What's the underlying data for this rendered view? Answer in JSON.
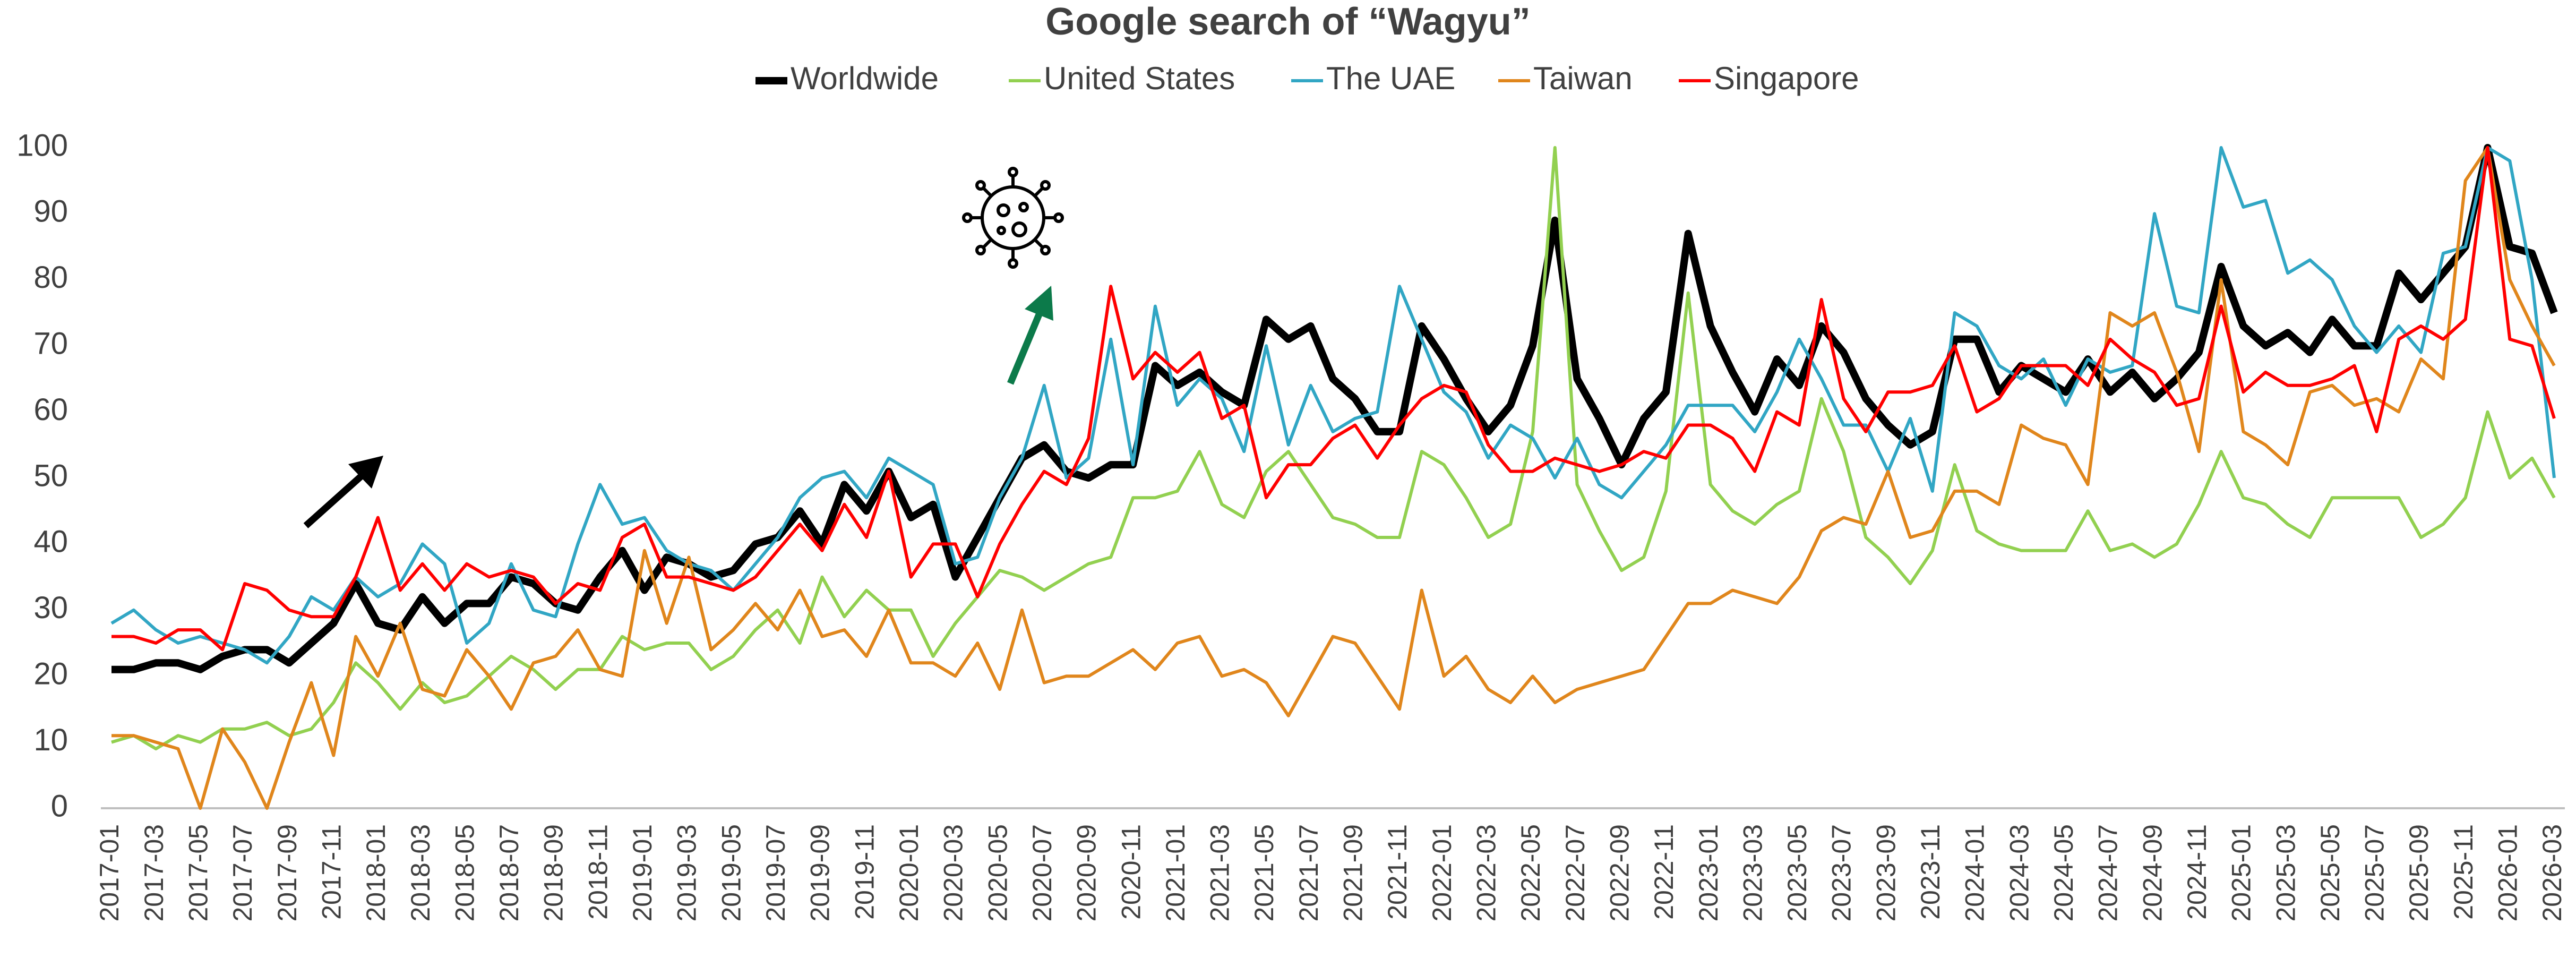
{
  "chart_data": {
    "type": "line",
    "title": "Google search of “Wagyu”",
    "categories": [
      "2017-01",
      null,
      "2017-03",
      null,
      "2017-05",
      null,
      "2017-07",
      null,
      "2017-09",
      null,
      "2017-11",
      null,
      "2018-01",
      null,
      "2018-03",
      null,
      "2018-05",
      null,
      "2018-07",
      null,
      "2018-09",
      null,
      "2018-11",
      null,
      "2019-01",
      null,
      "2019-03",
      null,
      "2019-05",
      null,
      "2019-07",
      null,
      "2019-09",
      null,
      "2019-11",
      null,
      "2020-01",
      null,
      "2020-03",
      null,
      "2020-05",
      null,
      "2020-07",
      null,
      "2020-09",
      null,
      "2020-11",
      null,
      "2021-01",
      null,
      "2021-03",
      null,
      "2021-05",
      null,
      "2021-07",
      null,
      "2021-09",
      null,
      "2021-11",
      null,
      "2022-01",
      null,
      "2022-03",
      null,
      "2022-05",
      null,
      "2022-07",
      null,
      "2022-09",
      null,
      "2022-11",
      null,
      "2023-01",
      null,
      "2023-03",
      null,
      "2023-05",
      null,
      "2023-07",
      null,
      "2023-09",
      null,
      "2023-11",
      null,
      "2024-01",
      null,
      "2024-03",
      null,
      "2024-05",
      null,
      "2024-07",
      null,
      "2024-09",
      null,
      "2024-11",
      null,
      "2025-01",
      null,
      "2025-03",
      null,
      "2025-05",
      null,
      "2025-07",
      null,
      "2025-09",
      null,
      "2025-11",
      null,
      "2026-01",
      null,
      "2026-03"
    ],
    "series": [
      {
        "name": "Worldwide",
        "color": "#000000",
        "values": [
          21,
          21,
          22,
          22,
          21,
          23,
          24,
          24,
          22,
          25,
          28,
          34,
          28,
          27,
          32,
          28,
          31,
          31,
          35,
          34,
          31,
          30,
          35,
          39,
          33,
          38,
          37,
          35,
          36,
          40,
          41,
          45,
          40,
          49,
          45,
          51,
          44,
          46,
          35,
          41,
          47,
          53,
          55,
          51,
          50,
          52,
          52,
          67,
          64,
          66,
          63,
          61,
          74,
          71,
          73,
          65,
          62,
          57,
          57,
          73,
          68,
          62,
          57,
          61,
          70,
          89,
          65,
          59,
          52,
          59,
          63,
          87,
          73,
          66,
          60,
          68,
          64,
          73,
          69,
          62,
          58,
          55,
          57,
          71,
          71,
          63,
          67,
          65,
          63,
          68,
          63,
          66,
          62,
          65,
          69,
          82,
          73,
          70,
          72,
          69,
          74,
          70,
          70,
          81,
          77,
          81,
          85,
          100,
          85,
          84,
          75
        ]
      },
      {
        "name": "United States",
        "color": "#92d050",
        "values": [
          10,
          11,
          9,
          11,
          10,
          12,
          12,
          13,
          11,
          12,
          16,
          22,
          19,
          15,
          19,
          16,
          17,
          20,
          23,
          21,
          18,
          21,
          21,
          26,
          24,
          25,
          25,
          21,
          23,
          27,
          30,
          25,
          35,
          29,
          33,
          30,
          30,
          23,
          28,
          32,
          36,
          35,
          33,
          35,
          37,
          38,
          47,
          47,
          48,
          54,
          46,
          44,
          51,
          54,
          49,
          44,
          43,
          41,
          41,
          54,
          52,
          47,
          41,
          43,
          57,
          100,
          49,
          42,
          36,
          38,
          48,
          78,
          49,
          45,
          43,
          46,
          48,
          62,
          54,
          41,
          38,
          34,
          39,
          52,
          42,
          40,
          39,
          39,
          39,
          45,
          39,
          40,
          38,
          40,
          46,
          54,
          47,
          46,
          43,
          41,
          47,
          47,
          47,
          47,
          41,
          43,
          47,
          60,
          50,
          53,
          47
        ]
      },
      {
        "name": "The UAE",
        "color": "#31a6c4",
        "values": [
          28,
          30,
          27,
          25,
          26,
          25,
          24,
          22,
          26,
          32,
          30,
          35,
          32,
          34,
          40,
          37,
          25,
          28,
          37,
          30,
          29,
          40,
          49,
          43,
          44,
          39,
          37,
          36,
          33,
          37,
          41,
          47,
          50,
          51,
          47,
          53,
          51,
          49,
          37,
          38,
          47,
          53,
          64,
          50,
          53,
          71,
          52,
          76,
          61,
          65,
          62,
          54,
          70,
          55,
          64,
          57,
          59,
          60,
          79,
          71,
          63,
          60,
          53,
          58,
          56,
          50,
          56,
          49,
          47,
          51,
          55,
          61,
          61,
          61,
          57,
          63,
          71,
          65,
          58,
          58,
          51,
          59,
          48,
          75,
          73,
          67,
          65,
          68,
          61,
          68,
          66,
          67,
          90,
          76,
          75,
          100,
          91,
          92,
          81,
          83,
          80,
          73,
          69,
          73,
          69,
          84,
          85,
          100,
          98,
          80,
          50
        ]
      },
      {
        "name": "Taiwan",
        "color": "#e0861c",
        "values": [
          11,
          11,
          10,
          9,
          0,
          12,
          7,
          0,
          10,
          19,
          8,
          26,
          20,
          28,
          18,
          17,
          24,
          20,
          15,
          22,
          23,
          27,
          21,
          20,
          39,
          28,
          38,
          24,
          27,
          31,
          27,
          33,
          26,
          27,
          23,
          30,
          22,
          22,
          20,
          25,
          18,
          30,
          19,
          20,
          20,
          22,
          24,
          21,
          25,
          26,
          20,
          21,
          19,
          14,
          20,
          26,
          25,
          20,
          15,
          33,
          20,
          23,
          18,
          16,
          20,
          16,
          18,
          19,
          20,
          21,
          26,
          31,
          31,
          33,
          32,
          31,
          35,
          42,
          44,
          43,
          51,
          41,
          42,
          48,
          48,
          46,
          58,
          56,
          55,
          49,
          75,
          73,
          75,
          66,
          54,
          80,
          57,
          55,
          52,
          63,
          64,
          61,
          62,
          60,
          68,
          65,
          95,
          100,
          80,
          73,
          67
        ]
      },
      {
        "name": "Singapore",
        "color": "#ff0000",
        "values": [
          26,
          26,
          25,
          27,
          27,
          24,
          34,
          33,
          30,
          29,
          29,
          35,
          44,
          33,
          37,
          33,
          37,
          35,
          36,
          35,
          31,
          34,
          33,
          41,
          43,
          35,
          35,
          34,
          33,
          35,
          39,
          43,
          39,
          46,
          41,
          51,
          35,
          40,
          40,
          32,
          40,
          46,
          51,
          49,
          56,
          79,
          65,
          69,
          66,
          69,
          59,
          61,
          47,
          52,
          52,
          56,
          58,
          53,
          58,
          62,
          64,
          63,
          55,
          51,
          51,
          53,
          52,
          51,
          52,
          54,
          53,
          58,
          58,
          56,
          51,
          60,
          58,
          77,
          62,
          57,
          63,
          63,
          64,
          70,
          60,
          62,
          67,
          67,
          67,
          64,
          71,
          68,
          66,
          61,
          62,
          76,
          63,
          66,
          64,
          64,
          65,
          67,
          57,
          71,
          73,
          71,
          74,
          100,
          71,
          70,
          59
        ]
      }
    ],
    "ylim": [
      0,
      100
    ],
    "yticks": [
      0,
      10,
      20,
      30,
      40,
      50,
      60,
      70,
      80,
      90,
      100
    ],
    "grid": false,
    "legend": "top"
  }
}
